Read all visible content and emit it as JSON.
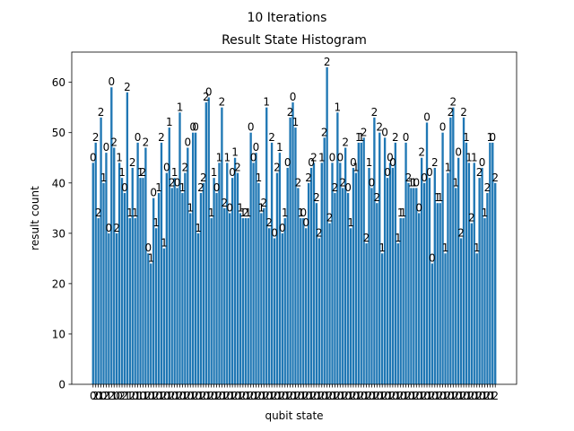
{
  "suptitle": "10 Iterations",
  "chart_data": {
    "type": "bar",
    "title": "Result State Histogram",
    "xlabel": "qubit state",
    "ylabel": "result count",
    "ylim": [
      0,
      66
    ],
    "yticks": [
      0,
      10,
      20,
      30,
      40,
      50,
      60
    ],
    "grid": false,
    "legend": "none",
    "bar_color": "#1f77b4",
    "values": [
      44,
      48,
      33,
      53,
      40,
      46,
      30,
      59,
      47,
      30,
      44,
      41,
      38,
      58,
      33,
      43,
      33,
      48,
      41,
      41,
      47,
      26,
      24,
      37,
      31,
      38,
      48,
      27,
      42,
      51,
      39,
      41,
      39,
      54,
      38,
      42,
      47,
      34,
      50,
      50,
      30,
      38,
      40,
      56,
      57,
      33,
      41,
      38,
      44,
      55,
      35,
      44,
      34,
      41,
      45,
      42,
      34,
      33,
      33,
      33,
      50,
      44,
      46,
      40,
      34,
      35,
      55,
      31,
      48,
      29,
      42,
      46,
      30,
      33,
      43,
      53,
      56,
      51,
      39,
      33,
      33,
      31,
      40,
      43,
      44,
      36,
      29,
      44,
      49,
      63,
      32,
      44,
      38,
      54,
      44,
      39,
      47,
      38,
      31,
      43,
      42,
      48,
      48,
      49,
      28,
      43,
      39,
      53,
      36,
      50,
      26,
      49,
      41,
      44,
      43,
      48,
      28,
      33,
      33,
      48,
      40,
      39,
      39,
      39,
      34,
      45,
      40,
      52,
      41,
      24,
      43,
      36,
      36,
      50,
      26,
      42,
      53,
      55,
      39,
      45,
      29,
      53,
      48,
      44,
      32,
      44,
      26,
      41,
      43,
      33,
      38,
      48,
      48,
      40
    ],
    "labels": [
      "0",
      "2",
      "2",
      "2",
      "1",
      "0",
      "0",
      "0",
      "2",
      "2",
      "1",
      "1",
      "0",
      "2",
      "1",
      "2",
      "1",
      "0",
      "1",
      "2",
      "2",
      "0",
      "1",
      "0",
      "1",
      "1",
      "2",
      "1",
      "0",
      "1",
      "2",
      "1",
      "0",
      "1",
      "1",
      "2",
      "0",
      "1",
      "0",
      "0",
      "1",
      "2",
      "2",
      "2",
      "0",
      "1",
      "1",
      "0",
      "1",
      "2",
      "2",
      "1",
      "0",
      "0",
      "1",
      "2",
      "1",
      "1",
      "2",
      "1",
      "0",
      "0",
      "0",
      "1",
      "1",
      "2",
      "1",
      "2",
      "2",
      "0",
      "2",
      "1",
      "0",
      "1",
      "0",
      "2",
      "0",
      "1",
      "2",
      "1",
      "0",
      "0",
      "2",
      "0",
      "2",
      "2",
      "2",
      "1",
      "2",
      "2",
      "2",
      "0",
      "2",
      "1",
      "0",
      "2",
      "2",
      "0",
      "1",
      "0",
      "1",
      "1",
      "1",
      "2",
      "2",
      "1",
      "0",
      "2",
      "2",
      "2",
      "1",
      "0",
      "0",
      "0",
      "0",
      "2",
      "1",
      "1",
      "1",
      "0",
      "2",
      "1",
      "1",
      "0",
      "0",
      "2",
      "0",
      "0",
      "0",
      "0",
      "2",
      "1",
      "1",
      "0",
      "1",
      "1",
      "2",
      "2",
      "1",
      "0",
      "2",
      "2",
      "1",
      "1",
      "2",
      "1",
      "1",
      "2",
      "0",
      "1",
      "2",
      "1",
      "0",
      "2"
    ],
    "xtick_labels": [
      "0",
      "2",
      "0",
      "1",
      "0",
      "2",
      "1",
      "2",
      "1",
      "0",
      "0",
      "2",
      "2",
      "1",
      "1",
      "2",
      "0",
      "1",
      "1",
      "0",
      "1",
      "2",
      "0",
      "1",
      "2",
      "0",
      "1",
      "2",
      "0",
      "1",
      "2",
      "0",
      "1",
      "2",
      "0",
      "1",
      "2",
      "0",
      "1",
      "2",
      "0",
      "1",
      "2",
      "0",
      "1",
      "2",
      "0",
      "1",
      "2",
      "0",
      "1",
      "2",
      "0",
      "1",
      "2",
      "0",
      "1",
      "2",
      "0",
      "1",
      "2",
      "0",
      "1",
      "2",
      "0",
      "1",
      "2",
      "0",
      "1",
      "2",
      "0",
      "1",
      "2",
      "0",
      "1",
      "2",
      "0",
      "1",
      "2",
      "0",
      "1",
      "2",
      "0",
      "1",
      "2",
      "0",
      "1",
      "2",
      "0",
      "1",
      "2",
      "0",
      "1",
      "2",
      "0",
      "1",
      "2",
      "0",
      "1",
      "2",
      "0",
      "1",
      "2",
      "0",
      "1",
      "2",
      "0",
      "1",
      "2",
      "0",
      "1",
      "2",
      "0",
      "1",
      "2",
      "0",
      "1",
      "2",
      "0",
      "1",
      "2",
      "0",
      "1",
      "2",
      "0",
      "1",
      "2",
      "0",
      "1",
      "2",
      "0",
      "1",
      "2",
      "0",
      "1",
      "2",
      "0",
      "1",
      "2",
      "0",
      "1",
      "2",
      "0",
      "1",
      "2",
      "0",
      "1",
      "2",
      "0",
      "1",
      "2",
      "0",
      "1",
      "2"
    ]
  }
}
